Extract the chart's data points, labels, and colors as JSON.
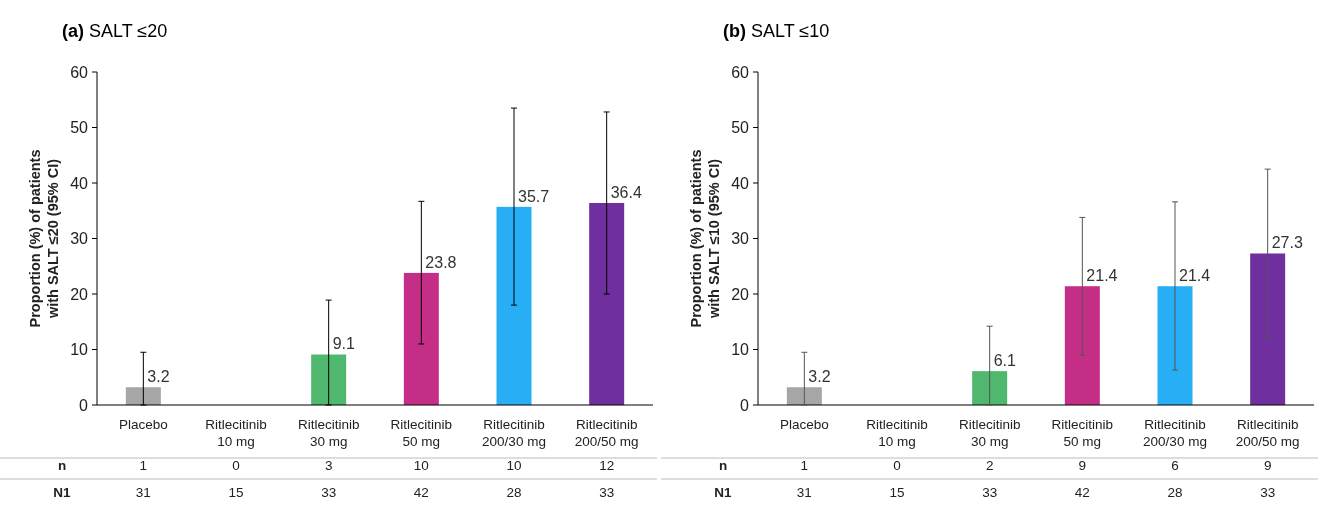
{
  "chart_data": [
    {
      "type": "bar",
      "title": "(a) SALT ≤20",
      "ylabel": "Proportion (%) of patients with SALT ≤20 (95% CI)",
      "categories": [
        "Placebo",
        "Ritlecitinib 10 mg",
        "Ritlecitinib 30 mg",
        "Ritlecitinib 50 mg",
        "Ritlecitinib 200/30 mg",
        "Ritlecitinib 200/50 mg"
      ],
      "values": [
        3.2,
        0,
        9.1,
        23.8,
        35.7,
        36.4
      ],
      "colors": [
        "#a6a6a6",
        "#a6a6a6",
        "#4fb86e",
        "#c42e87",
        "#27aef5",
        "#6f2f9e"
      ],
      "errors": [
        [
          0,
          9.5
        ],
        null,
        [
          0,
          18.9
        ],
        [
          11,
          36.7
        ],
        [
          18,
          53.5
        ],
        [
          20,
          52.8
        ]
      ],
      "value_labels": [
        "3.2",
        null,
        "9.1",
        "23.8",
        "35.7",
        "36.4"
      ],
      "ylim": [
        0,
        60
      ],
      "yticks": [
        0,
        10,
        20,
        30,
        40,
        50,
        60
      ],
      "grid": false,
      "annotations": [
        "n",
        "1",
        "0",
        "3",
        "10",
        "10",
        "12",
        "N1",
        "31",
        "15",
        "33",
        "42",
        "28",
        "33"
      ]
    },
    {
      "type": "bar",
      "title": "(b) SALT ≤10",
      "ylabel": "Proportion (%) of patients with SALT ≤10 (95% CI)",
      "categories": [
        "Placebo",
        "Ritlecitinib 10 mg",
        "Ritlecitinib 30 mg",
        "Ritlecitinib 50 mg",
        "Ritlecitinib 200/30 mg",
        "Ritlecitinib 200/50 mg"
      ],
      "values": [
        3.2,
        0,
        6.1,
        21.4,
        21.4,
        27.3
      ],
      "colors": [
        "#a6a6a6",
        "#a6a6a6",
        "#4fb86e",
        "#c42e87",
        "#27aef5",
        "#6f2f9e"
      ],
      "errors": [
        [
          0,
          9.5
        ],
        null,
        [
          0,
          14.2
        ],
        [
          9,
          33.8
        ],
        [
          6.3,
          36.6
        ],
        [
          12,
          42.5
        ]
      ],
      "value_labels": [
        "3.2",
        null,
        "6.1",
        "21.4",
        "21.4",
        "27.3"
      ],
      "ylim": [
        0,
        60
      ],
      "yticks": [
        0,
        10,
        20,
        30,
        40,
        50,
        60
      ],
      "grid": false,
      "annotations": [
        "n",
        "1",
        "0",
        "2",
        "9",
        "6",
        "9",
        "N1",
        "31",
        "15",
        "33",
        "42",
        "28",
        "33"
      ]
    }
  ]
}
